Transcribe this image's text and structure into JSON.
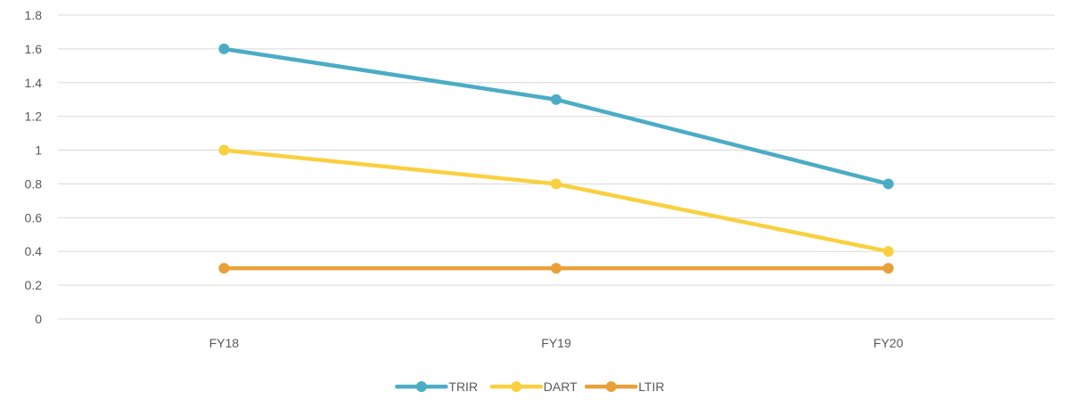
{
  "chart_data": {
    "type": "line",
    "title": "",
    "xlabel": "",
    "ylabel": "",
    "categories": [
      "FY18",
      "FY19",
      "FY20"
    ],
    "ylim": [
      0,
      1.8
    ],
    "yticks": [
      "0",
      "0.2",
      "0.4",
      "0.6",
      "0.8",
      "1",
      "1.2",
      "1.4",
      "1.6",
      "1.8"
    ],
    "grid": true,
    "legend_position": "bottom",
    "series": [
      {
        "name": "TRIR",
        "values": [
          1.6,
          1.3,
          0.8
        ],
        "color": "#4bacc6"
      },
      {
        "name": "DART",
        "values": [
          1.0,
          0.8,
          0.4
        ],
        "color": "#f9d03f"
      },
      {
        "name": "LTIR",
        "values": [
          0.3,
          0.3,
          0.3
        ],
        "color": "#eaa038"
      }
    ]
  }
}
